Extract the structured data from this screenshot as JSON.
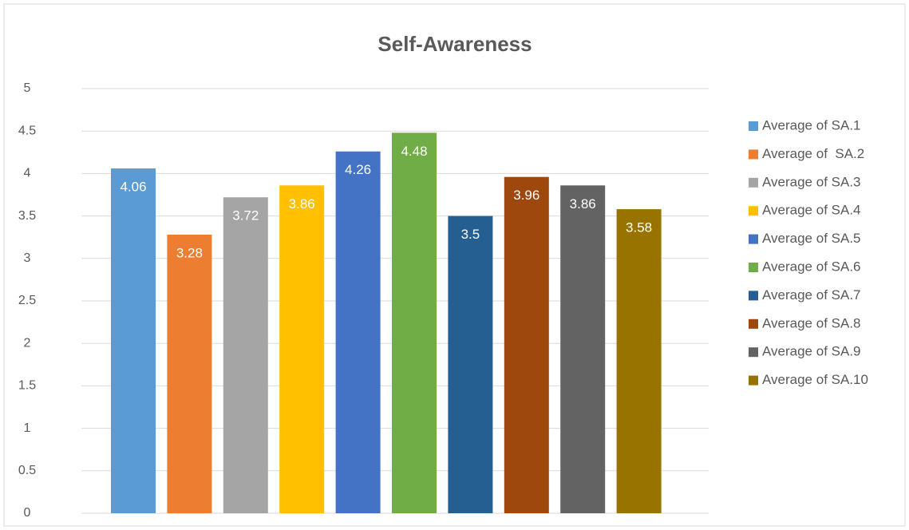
{
  "chart_data": {
    "type": "bar",
    "title": "Self-Awareness",
    "categories": [
      null
    ],
    "series": [
      {
        "name": "Average of SA.1",
        "color": "#5b9bd5",
        "values": [
          4.06
        ]
      },
      {
        "name": "Average of  SA.2",
        "color": "#ed7d31",
        "values": [
          3.28
        ]
      },
      {
        "name": "Average of SA.3",
        "color": "#a5a5a5",
        "values": [
          3.72
        ]
      },
      {
        "name": "Average of SA.4",
        "color": "#ffc000",
        "values": [
          3.86
        ]
      },
      {
        "name": "Average of SA.5",
        "color": "#4472c4",
        "values": [
          4.26
        ]
      },
      {
        "name": "Average of SA.6",
        "color": "#70ad47",
        "values": [
          4.48
        ]
      },
      {
        "name": "Average of SA.7",
        "color": "#255e91",
        "values": [
          3.5
        ]
      },
      {
        "name": "Average of SA.8",
        "color": "#9e480e",
        "values": [
          3.96
        ]
      },
      {
        "name": "Average of SA.9",
        "color": "#636363",
        "values": [
          3.86
        ]
      },
      {
        "name": "Average of SA.10",
        "color": "#997300",
        "values": [
          3.58
        ]
      }
    ],
    "ylim": [
      0,
      5
    ],
    "yticks": [
      0,
      0.5,
      1,
      1.5,
      2,
      2.5,
      3,
      3.5,
      4,
      4.5,
      5
    ],
    "grid": true,
    "legend": "right",
    "data_labels": true
  }
}
